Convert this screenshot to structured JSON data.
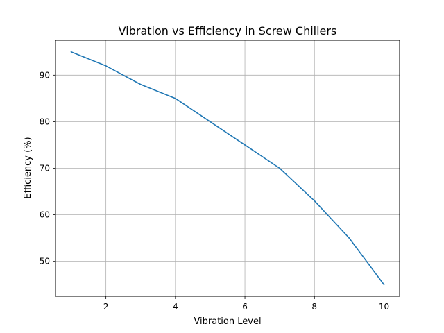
{
  "chart_data": {
    "type": "line",
    "title": "Vibration vs Efficiency in Screw Chillers",
    "xlabel": "Vibration Level",
    "ylabel": "Efficiency (%)",
    "xlim": [
      0.55,
      10.45
    ],
    "ylim": [
      42.5,
      97.5
    ],
    "x_ticks": [
      2,
      4,
      6,
      8,
      10
    ],
    "y_ticks": [
      50,
      60,
      70,
      80,
      90
    ],
    "grid": true,
    "series": [
      {
        "color": "#1f77b4",
        "x": [
          1,
          2,
          3,
          4,
          5,
          6,
          7,
          8,
          9,
          10
        ],
        "y": [
          95,
          92,
          88,
          85,
          80,
          75,
          70,
          63,
          55,
          45
        ]
      }
    ]
  }
}
